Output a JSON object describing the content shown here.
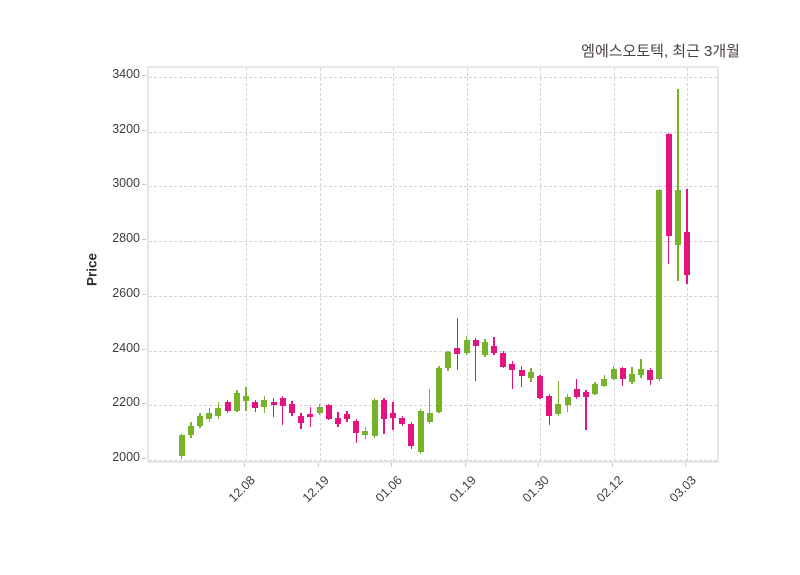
{
  "title": "엠에스오토텍, 최근 3개월",
  "chart_data": {
    "type": "candlestick",
    "title": "엠에스오토텍, 최근 3개월",
    "ylabel": "Price",
    "xlabel": "",
    "grid": true,
    "ylim": [
      1982,
      3433
    ],
    "y_ticks": [
      2000,
      2200,
      2400,
      2600,
      2800,
      3000,
      3200,
      3400
    ],
    "x_tick_labels": [
      "12.08",
      "12.19",
      "01.06",
      "01.19",
      "01.30",
      "02.12",
      "03.03"
    ],
    "x_tick_indices": [
      7,
      15,
      23,
      31,
      39,
      47,
      55
    ],
    "up_color": "#77B22B",
    "down_color": "#E3137F",
    "candles_format": [
      "open",
      "high",
      "low",
      "close"
    ],
    "candles": [
      [
        2015,
        2095,
        2005,
        2090
      ],
      [
        2090,
        2140,
        2080,
        2125
      ],
      [
        2125,
        2170,
        2115,
        2160
      ],
      [
        2150,
        2190,
        2140,
        2170
      ],
      [
        2160,
        2210,
        2150,
        2190
      ],
      [
        2210,
        2220,
        2170,
        2180
      ],
      [
        2180,
        2255,
        2175,
        2245
      ],
      [
        2215,
        2265,
        2180,
        2235
      ],
      [
        2210,
        2220,
        2175,
        2190
      ],
      [
        2195,
        2235,
        2170,
        2220
      ],
      [
        2212,
        2228,
        2155,
        2202
      ],
      [
        2227,
        2234,
        2127,
        2198
      ],
      [
        2203,
        2214,
        2161,
        2173
      ],
      [
        2160,
        2172,
        2113,
        2135
      ],
      [
        2169,
        2194,
        2120,
        2157
      ],
      [
        2170,
        2205,
        2165,
        2195
      ],
      [
        2200,
        2205,
        2145,
        2150
      ],
      [
        2152,
        2175,
        2120,
        2132
      ],
      [
        2169,
        2180,
        2138,
        2148
      ],
      [
        2141,
        2150,
        2063,
        2099
      ],
      [
        2090,
        2120,
        2075,
        2105
      ],
      [
        2087,
        2228,
        2080,
        2218
      ],
      [
        2220,
        2225,
        2095,
        2150
      ],
      [
        2173,
        2212,
        2110,
        2153
      ],
      [
        2153,
        2160,
        2125,
        2132
      ],
      [
        2132,
        2140,
        2040,
        2050
      ],
      [
        2030,
        2185,
        2020,
        2180
      ],
      [
        2140,
        2260,
        2130,
        2170
      ],
      [
        2175,
        2345,
        2170,
        2335
      ],
      [
        2335,
        2400,
        2325,
        2395
      ],
      [
        2410,
        2518,
        2330,
        2386
      ],
      [
        2390,
        2452,
        2385,
        2437
      ],
      [
        2439,
        2445,
        2287,
        2415
      ],
      [
        2383,
        2442,
        2378,
        2431
      ],
      [
        2415,
        2448,
        2385,
        2390
      ],
      [
        2390,
        2398,
        2335,
        2341
      ],
      [
        2349,
        2362,
        2260,
        2327
      ],
      [
        2330,
        2345,
        2268,
        2308
      ],
      [
        2300,
        2336,
        2285,
        2321
      ],
      [
        2306,
        2310,
        2222,
        2227
      ],
      [
        2232,
        2240,
        2129,
        2159
      ],
      [
        2168,
        2287,
        2160,
        2206
      ],
      [
        2202,
        2242,
        2175,
        2230
      ],
      [
        2258,
        2297,
        2222,
        2230
      ],
      [
        2249,
        2255,
        2108,
        2231
      ],
      [
        2242,
        2285,
        2238,
        2279
      ],
      [
        2270,
        2312,
        2265,
        2297
      ],
      [
        2297,
        2345,
        2292,
        2331
      ],
      [
        2336,
        2340,
        2270,
        2297
      ],
      [
        2285,
        2340,
        2278,
        2315
      ],
      [
        2311,
        2369,
        2300,
        2334
      ],
      [
        2328,
        2335,
        2273,
        2291
      ],
      [
        2297,
        2990,
        2290,
        2986
      ],
      [
        3190,
        3195,
        2715,
        2820
      ],
      [
        2785,
        3355,
        2655,
        2986
      ],
      [
        2833,
        2990,
        2644,
        2675
      ]
    ]
  }
}
